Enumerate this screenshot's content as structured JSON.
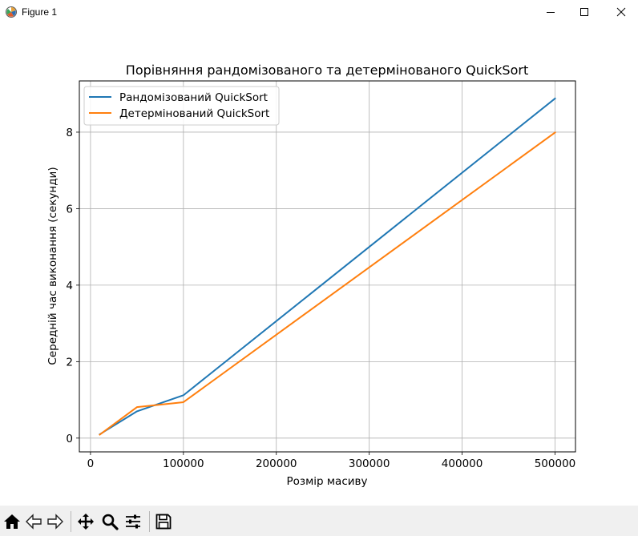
{
  "window": {
    "title": "Figure 1",
    "icon": "matplotlib-figure-icon",
    "controls": [
      "minimize-icon",
      "maximize-icon",
      "close-icon"
    ]
  },
  "toolbar": {
    "buttons": [
      "home-icon",
      "back-icon",
      "forward-icon",
      "pan-icon",
      "zoom-icon",
      "configure-subplots-icon",
      "save-icon"
    ]
  },
  "chart_data": {
    "type": "line",
    "title": "Порівняння рандомізованого та детермінованого QuickSort",
    "xlabel": "Розмір масиву",
    "ylabel": "Середній час виконання (секунди)",
    "x": [
      10000,
      50000,
      100000,
      500000
    ],
    "xlim": [
      -12000,
      522000
    ],
    "ylim": [
      -0.36,
      9.34
    ],
    "xticks": [
      0,
      100000,
      200000,
      300000,
      400000,
      500000
    ],
    "xtick_labels": [
      "0",
      "100000",
      "200000",
      "300000",
      "400000",
      "500000"
    ],
    "yticks": [
      0,
      2,
      4,
      6,
      8
    ],
    "ytick_labels": [
      "0",
      "2",
      "4",
      "6",
      "8"
    ],
    "grid": true,
    "legend_position": "upper left",
    "series": [
      {
        "name": "Рандомізований QuickSort",
        "color": "#1f77b4",
        "values": [
          0.1,
          0.7,
          1.12,
          8.88
        ]
      },
      {
        "name": "Детермінований QuickSort",
        "color": "#ff7f0e",
        "values": [
          0.09,
          0.81,
          0.94,
          7.99
        ]
      }
    ]
  }
}
